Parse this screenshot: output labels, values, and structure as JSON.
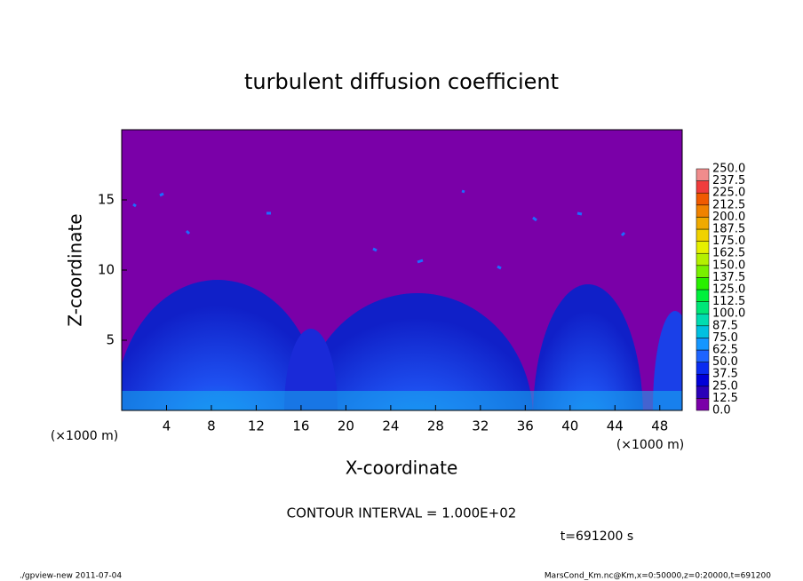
{
  "chart_data": {
    "type": "contour",
    "title": "turbulent diffusion coefficient",
    "x_label": "X-coordinate",
    "y_label": "Z-coordinate",
    "x_unit_labels": [
      "(×1000 m)",
      "(×1000 m)"
    ],
    "xlim": [
      0,
      50
    ],
    "xticks": [
      4,
      8,
      12,
      16,
      20,
      24,
      28,
      32,
      36,
      40,
      44,
      48
    ],
    "ylim": [
      0,
      20
    ],
    "yticks": [
      5,
      10,
      15
    ],
    "colorbar": {
      "levels": [
        {
          "value": 0,
          "label": "0.0"
        },
        12.5,
        {
          "value": 25,
          "label": "25.0"
        },
        37.5,
        {
          "value": 50,
          "label": "50.0"
        },
        62.5,
        {
          "value": 75,
          "label": "75.0"
        },
        87.5,
        {
          "value": 100,
          "label": "100.0"
        },
        112.5,
        {
          "value": 125,
          "label": "125.0"
        },
        137.5,
        {
          "value": 150,
          "label": "150.0"
        },
        162.5,
        {
          "value": 175,
          "label": "175.0"
        },
        187.5,
        {
          "value": 200,
          "label": "200.0"
        },
        212.5,
        {
          "value": 225,
          "label": "225.0"
        },
        237.5,
        {
          "value": 250,
          "label": "250.0"
        }
      ],
      "colors": [
        "#7a00a8",
        "#2a00b8",
        "#0000d8",
        "#0a2cf0",
        "#1e64ff",
        "#1496ff",
        "#00c0e0",
        "#00dcb0",
        "#00e678",
        "#00f03c",
        "#28f000",
        "#78f000",
        "#b4f000",
        "#e6f000",
        "#f0d200",
        "#f0aa00",
        "#f08200",
        "#f05a00",
        "#f03c3c",
        "#f08c8c"
      ]
    },
    "annotations": {
      "contour_interval": "CONTOUR INTERVAL = 1.000E+02",
      "time": "t=691200 s",
      "footer_left": "./gpview-new  2011-07-04",
      "footer_right": "MarsCond_Km.nc@Km,x=0:50000,z=0:20000,t=691200"
    }
  }
}
